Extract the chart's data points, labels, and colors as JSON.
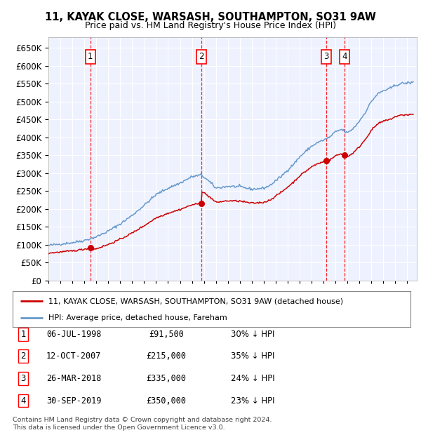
{
  "title_line1": "11, KAYAK CLOSE, WARSASH, SOUTHAMPTON, SO31 9AW",
  "title_line2": "Price paid vs. HM Land Registry's House Price Index (HPI)",
  "legend_label1": "11, KAYAK CLOSE, WARSASH, SOUTHAMPTON, SO31 9AW (detached house)",
  "legend_label2": "HPI: Average price, detached house, Fareham",
  "footer": "Contains HM Land Registry data © Crown copyright and database right 2024.\nThis data is licensed under the Open Government Licence v3.0.",
  "transactions": [
    {
      "num": 1,
      "date": "06-JUL-1998",
      "price": 91500,
      "pct": "30% ↓ HPI",
      "x_year": 1998.51
    },
    {
      "num": 2,
      "date": "12-OCT-2007",
      "price": 215000,
      "pct": "35% ↓ HPI",
      "x_year": 2007.78
    },
    {
      "num": 3,
      "date": "26-MAR-2018",
      "price": 335000,
      "pct": "24% ↓ HPI",
      "x_year": 2018.23
    },
    {
      "num": 4,
      "date": "30-SEP-2019",
      "price": 350000,
      "pct": "23% ↓ HPI",
      "x_year": 2019.75
    }
  ],
  "hpi_color": "#6699cc",
  "price_color": "#cc0000",
  "plot_bg": "#eef2ff",
  "ylim": [
    0,
    680000
  ],
  "xlim_start": 1995.0,
  "xlim_end": 2025.8,
  "hpi_anchors_years": [
    1995.0,
    1996.0,
    1997.0,
    1998.0,
    1999.0,
    2000.0,
    2001.0,
    2002.0,
    2003.0,
    2004.0,
    2005.0,
    2006.0,
    2007.0,
    2007.8,
    2008.5,
    2009.0,
    2010.0,
    2011.0,
    2012.0,
    2013.0,
    2013.5,
    2014.5,
    2015.5,
    2016.0,
    2017.0,
    2017.5,
    2018.0,
    2018.5,
    2019.0,
    2019.5,
    2020.0,
    2020.5,
    2021.0,
    2021.5,
    2022.0,
    2022.5,
    2023.0,
    2023.5,
    2024.0,
    2024.5,
    2025.5
  ],
  "hpi_anchors_vals": [
    98000,
    102000,
    106000,
    112000,
    122000,
    138000,
    158000,
    182000,
    210000,
    240000,
    258000,
    272000,
    290000,
    295000,
    275000,
    258000,
    263000,
    262000,
    255000,
    258000,
    265000,
    292000,
    325000,
    345000,
    375000,
    385000,
    392000,
    400000,
    415000,
    422000,
    412000,
    425000,
    445000,
    470000,
    500000,
    520000,
    530000,
    535000,
    545000,
    550000,
    553000
  ]
}
